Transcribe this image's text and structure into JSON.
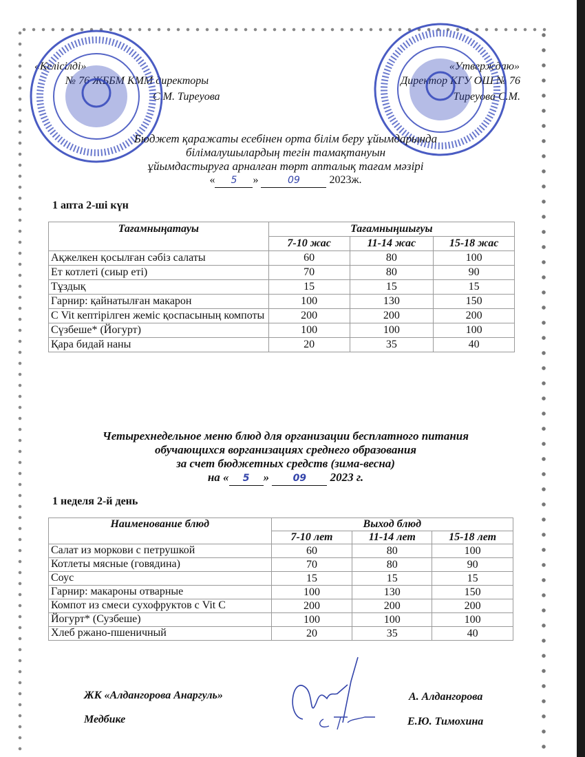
{
  "header": {
    "left": {
      "approval": "«Келісілді»",
      "position": "№ 76 ЖББМ КММ директоры",
      "name": "С.М. Тиреуова"
    },
    "right": {
      "approval": "«Утверждаю»",
      "position": "Директор КГУ ОШ № 76",
      "name": "Тиреуова С.М."
    }
  },
  "kz": {
    "title_lines": [
      "Бюджет қаражаты есебінен орта білім беру ұйымдарында",
      "білімалушылардың тегін  тамақтануын",
      "ұйымдастыруға арналған төрт апталық тағам мәзірі"
    ],
    "date_open": "«",
    "date_day": "5",
    "date_close": "»",
    "date_month": "09",
    "date_year": "2023ж.",
    "day_label": "1 апта 2-ші күн",
    "table": {
      "col_name": "Тағамныңатауы",
      "col_group": "Тағамныңшығуы",
      "age_cols": [
        "7-10 жас",
        "11-14 жас",
        "15-18 жас"
      ],
      "rows": [
        {
          "name": "Ақжелкен қосылған сәбіз салаты",
          "v": [
            "60",
            "80",
            "100"
          ]
        },
        {
          "name": "Ет котлеті (сиыр еті)",
          "v": [
            "70",
            "80",
            "90"
          ]
        },
        {
          "name": "Тұздық",
          "v": [
            "15",
            "15",
            "15"
          ]
        },
        {
          "name": "Гарнир: қайнатылған макарон",
          "v": [
            "100",
            "130",
            "150"
          ]
        },
        {
          "name": "С Vit кептірілген жеміс қоспасының компоты",
          "v": [
            "200",
            "200",
            "200"
          ]
        },
        {
          "name": "Сүзбеше* (Йогурт)",
          "v": [
            "100",
            "100",
            "100"
          ]
        },
        {
          "name": "Қара бидай наны",
          "v": [
            "20",
            "35",
            "40"
          ]
        }
      ]
    }
  },
  "ru": {
    "title_lines": [
      "Четырехнедельное меню блюд для организации бесплатного питания",
      "обучающихся ворганизациях среднего образования",
      "за счет бюджетных средств (зима-весна)"
    ],
    "date_prefix": "на «",
    "date_day": "5",
    "date_close": "»",
    "date_month": "09",
    "date_year": "2023 г.",
    "day_label": "1 неделя 2-й день",
    "table": {
      "col_name": "Наименование блюд",
      "col_group": "Выход блюд",
      "age_cols": [
        "7-10 лет",
        "11-14 лет",
        "15-18 лет"
      ],
      "rows": [
        {
          "name": "Салат из моркови с петрушкой",
          "v": [
            "60",
            "80",
            "100"
          ]
        },
        {
          "name": "Котлеты мясные (говядина)",
          "v": [
            "70",
            "80",
            "90"
          ]
        },
        {
          "name": "Соус",
          "v": [
            "15",
            "15",
            "15"
          ]
        },
        {
          "name": "Гарнир: макароны отварные",
          "v": [
            "100",
            "130",
            "150"
          ]
        },
        {
          "name": "Компот из смеси сухофруктов с Vit C",
          "v": [
            "200",
            "200",
            "200"
          ]
        },
        {
          "name": "Йогурт* (Сузбеше)",
          "v": [
            "100",
            "100",
            "100"
          ]
        },
        {
          "name": "Хлеб ржано-пшеничный",
          "v": [
            "20",
            "35",
            "40"
          ]
        }
      ]
    }
  },
  "signatures": {
    "supplier": "ЖК «Алдангорова Анаргуль»",
    "supplier_name": "А. Алдангорова",
    "nurse": "Медбике",
    "nurse_name": "Е.Ю. Тимохина"
  },
  "colors": {
    "stamp": "#2a3fb8",
    "ink": "#3344aa"
  }
}
